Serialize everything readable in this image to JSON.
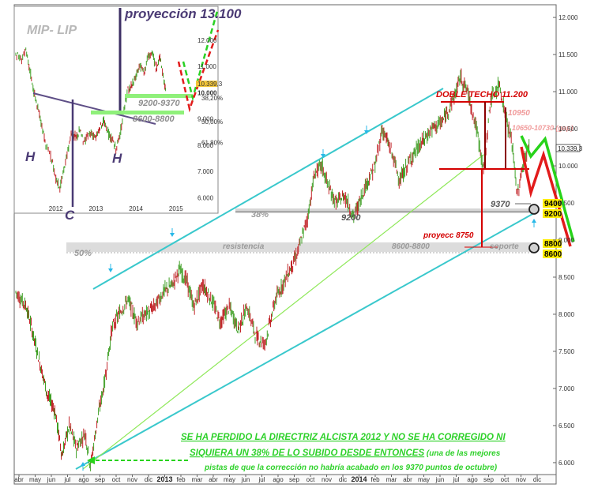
{
  "chart_data": [
    {
      "type": "candlestick-line",
      "panel": "main",
      "y_ticks": [
        6000,
        6500,
        7000,
        7500,
        8000,
        8500,
        9000,
        9500,
        10000,
        10500,
        11000,
        11500,
        12000
      ],
      "y_tick_labels": [
        "6.000",
        "6.500",
        "7.000",
        "7.500",
        "8.000",
        "8.500",
        "9.000",
        "9.500",
        "10.000",
        "10.500",
        "11.000",
        "11.500",
        "12.000"
      ],
      "ylim": [
        5850,
        12150
      ],
      "xlim": [
        0,
        30.2
      ],
      "x_tick_labels": [
        "abr",
        "may",
        "jun",
        "jul",
        "ago",
        "sep",
        "oct",
        "nov",
        "dic",
        "2013",
        "feb",
        "mar",
        "abr",
        "may",
        "jun",
        "jul",
        "ago",
        "sep",
        "oct",
        "nov",
        "dic",
        "2014",
        "feb",
        "mar",
        "abr",
        "may",
        "jun",
        "jul",
        "ago",
        "sep",
        "oct",
        "nov",
        "dic"
      ],
      "price_path": [
        [
          0,
          8300
        ],
        [
          0.6,
          8100
        ],
        [
          1,
          7700
        ],
        [
          1.4,
          7300
        ],
        [
          1.8,
          6900
        ],
        [
          2.2,
          6700
        ],
        [
          2.6,
          6100
        ],
        [
          3,
          6500
        ],
        [
          3.4,
          6200
        ],
        [
          3.9,
          6400
        ],
        [
          4.2,
          5950
        ],
        [
          4.6,
          6600
        ],
        [
          5,
          7100
        ],
        [
          5.4,
          7800
        ],
        [
          5.8,
          8000
        ],
        [
          6.3,
          8200
        ],
        [
          6.8,
          7900
        ],
        [
          7.3,
          8000
        ],
        [
          7.8,
          8100
        ],
        [
          8.3,
          8300
        ],
        [
          8.8,
          8400
        ],
        [
          9.2,
          8600
        ],
        [
          9.6,
          8450
        ],
        [
          10,
          8100
        ],
        [
          10.5,
          8400
        ],
        [
          11,
          8200
        ],
        [
          11.5,
          7900
        ],
        [
          12,
          8100
        ],
        [
          12.5,
          7800
        ],
        [
          13,
          8100
        ],
        [
          13.5,
          7700
        ],
        [
          14,
          7600
        ],
        [
          14.6,
          8200
        ],
        [
          15.2,
          8500
        ],
        [
          15.8,
          8800
        ],
        [
          16.4,
          9300
        ],
        [
          16.8,
          9900
        ],
        [
          17.2,
          10000
        ],
        [
          17.6,
          9700
        ],
        [
          18,
          9500
        ],
        [
          18.5,
          9600
        ],
        [
          19,
          9300
        ],
        [
          19.6,
          9700
        ],
        [
          20.2,
          10000
        ],
        [
          20.6,
          10500
        ],
        [
          21.1,
          10200
        ],
        [
          21.6,
          9800
        ],
        [
          22.2,
          10100
        ],
        [
          22.8,
          10300
        ],
        [
          23.4,
          10500
        ],
        [
          24,
          10600
        ],
        [
          24.6,
          10900
        ],
        [
          25,
          11200
        ],
        [
          25.4,
          11000
        ],
        [
          25.9,
          10500
        ],
        [
          26.3,
          9950
        ],
        [
          26.7,
          10900
        ],
        [
          27.2,
          11100
        ],
        [
          27.5,
          10700
        ],
        [
          27.9,
          10300
        ],
        [
          28.2,
          9600
        ],
        [
          28.5,
          10000
        ],
        [
          28.9,
          10300
        ]
      ],
      "price_bar_colors": {
        "up": "#3f9f25",
        "down": "#c2262a"
      },
      "support_levels": [
        {
          "label": "9200",
          "value": 9200
        },
        {
          "label": "9370",
          "value": 9370
        },
        {
          "label": "8600-8800",
          "value": 8700
        }
      ],
      "callouts": [
        {
          "text": "DOBLE TECHO 11.200",
          "color": "#d40000"
        },
        {
          "text": "10950",
          "color": "#f4a0a0"
        },
        {
          "text": "10650-10730 (gap)",
          "color": "#f4a0a0"
        },
        {
          "text": "10.339,3",
          "color": "#333"
        },
        {
          "text": "10.000",
          "color": "#333"
        },
        {
          "text": "9370",
          "color": "#444"
        },
        {
          "text": "9200",
          "color": "#444"
        },
        {
          "text": "38%",
          "color": "#aaa"
        },
        {
          "text": "50%",
          "color": "#aaa"
        },
        {
          "text": "resistencia",
          "color": "#aaa"
        },
        {
          "text": "8600-8800",
          "color": "#aaa"
        },
        {
          "text": "soporte",
          "color": "#aaa"
        },
        {
          "text": "proyecc 8750",
          "color": "#d40000"
        }
      ],
      "level_badges": [
        "9400",
        "9200",
        "8800",
        "8600"
      ],
      "caption": {
        "line1": "SE HA PERDIDO LA DIRECTRIZ ALCISTA 2012 Y NO SE HA CORREGIDO NI",
        "line2_bold": "SIQUIERA UN 38% DE LO SUBIDO DESDE ENTONCES",
        "line2_rest": " (una de las mejores",
        "line3": "pistas de que la corrección no habría acabado en los 9370 puntos de octubre)"
      }
    },
    {
      "type": "line",
      "panel": "inset",
      "title": "MIP- LIP",
      "projection_label": "proyección 13.100",
      "zone_labels": [
        "9200-9370",
        "8600-8800"
      ],
      "pattern_labels": [
        "H",
        "C",
        "H"
      ],
      "x_tick_labels": [
        "2012",
        "2013",
        "2014",
        "2015"
      ],
      "y_tick_labels": [
        "12.000",
        "11.000",
        "10.339,3",
        "10.000",
        "9.000",
        "8.000",
        "7.000",
        "6.000"
      ],
      "pct_labels": [
        "38,20%",
        "50,00%",
        "61,80%"
      ],
      "ylim": [
        5800,
        12900
      ],
      "xlim": [
        0,
        4.3
      ],
      "price_path": [
        [
          0,
          11500
        ],
        [
          0.12,
          11300
        ],
        [
          0.25,
          11600
        ],
        [
          0.35,
          10900
        ],
        [
          0.45,
          10100
        ],
        [
          0.55,
          9400
        ],
        [
          0.65,
          8800
        ],
        [
          0.75,
          8000
        ],
        [
          0.9,
          7500
        ],
        [
          1.0,
          6800
        ],
        [
          1.1,
          6400
        ],
        [
          1.2,
          7100
        ],
        [
          1.3,
          7800
        ],
        [
          1.4,
          8500
        ],
        [
          1.5,
          8300
        ],
        [
          1.6,
          8600
        ],
        [
          1.7,
          8100
        ],
        [
          1.8,
          8400
        ],
        [
          1.9,
          8500
        ],
        [
          2.0,
          8300
        ],
        [
          2.1,
          8700
        ],
        [
          2.2,
          8900
        ],
        [
          2.3,
          8500
        ],
        [
          2.4,
          8200
        ],
        [
          2.5,
          7900
        ],
        [
          2.6,
          8400
        ],
        [
          2.7,
          9400
        ],
        [
          2.8,
          10100
        ],
        [
          2.9,
          10300
        ],
        [
          3.0,
          10700
        ],
        [
          3.1,
          11100
        ],
        [
          3.2,
          10800
        ],
        [
          3.3,
          11400
        ],
        [
          3.4,
          11500
        ],
        [
          3.5,
          11000
        ],
        [
          3.6,
          11400
        ],
        [
          3.7,
          10500
        ],
        [
          3.75,
          10000
        ]
      ]
    }
  ]
}
